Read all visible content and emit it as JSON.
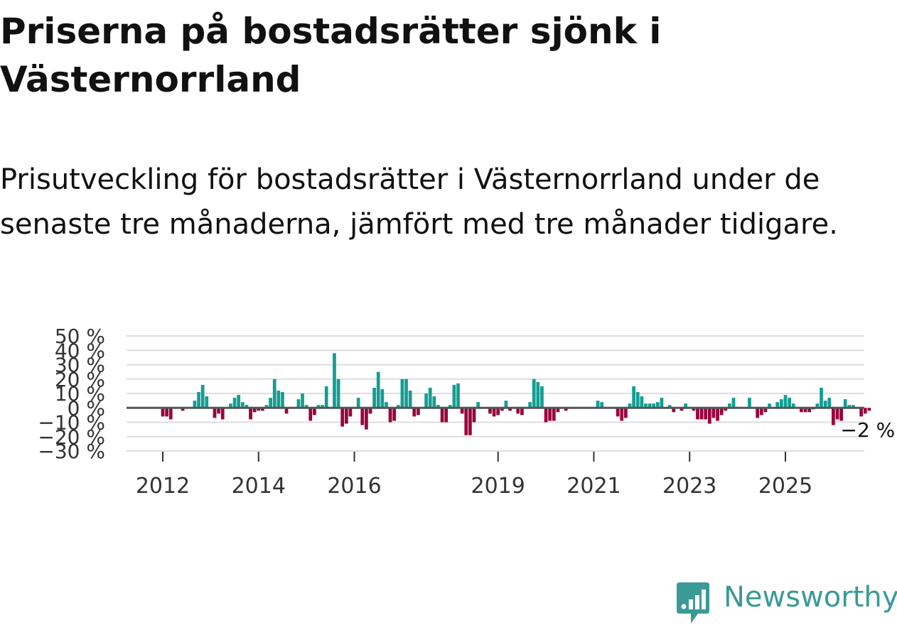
{
  "title": "Priserna på bostadsrätter sjönk i Västernorrland",
  "subtitle": "Prisutveckling för bostadsrätter i Västernorrland under de senaste tre månaderna, jämfört med tre månader tidigare.",
  "brand": {
    "name": "Newsworthy",
    "color": "#3a9a96"
  },
  "colors": {
    "positive": "#139e93",
    "negative": "#99003d",
    "grid": "#dddddd",
    "zero_line": "#555555"
  },
  "chart_data": {
    "type": "bar",
    "title": "Priserna på bostadsrätter sjönk i Västernorrland",
    "xlabel": "",
    "ylabel": "",
    "unit": "%",
    "ylim": [
      -30,
      50
    ],
    "yticks": [
      {
        "value": 50,
        "label": "50 %"
      },
      {
        "value": 40,
        "label": "40 %"
      },
      {
        "value": 30,
        "label": "30 %"
      },
      {
        "value": 20,
        "label": "20 %"
      },
      {
        "value": 10,
        "label": "10 %"
      },
      {
        "value": 0,
        "label": "0 %"
      },
      {
        "value": -10,
        "label": "−10 %"
      },
      {
        "value": -20,
        "label": "−20 %"
      },
      {
        "value": -30,
        "label": "−30 %"
      }
    ],
    "xticks": [
      {
        "year": 2012,
        "label": "2012"
      },
      {
        "year": 2014,
        "label": "2014"
      },
      {
        "year": 2016,
        "label": "2016"
      },
      {
        "year": 2019,
        "label": "2019"
      },
      {
        "year": 2021,
        "label": "2021"
      },
      {
        "year": 2023,
        "label": "2023"
      },
      {
        "year": 2025,
        "label": "2025"
      }
    ],
    "start": "2011-01",
    "last_label": "−2 %",
    "values": [
      0,
      0,
      0,
      0,
      0,
      0,
      0,
      0,
      0,
      0,
      0,
      0,
      -6,
      -6,
      -8,
      0,
      0,
      -2,
      0,
      0,
      5,
      11,
      16,
      8,
      0,
      -7,
      -4,
      -8,
      0,
      3,
      7,
      9,
      4,
      2,
      -8,
      -3,
      -2,
      -2,
      2,
      7,
      20,
      12,
      11,
      -4,
      0,
      0,
      6,
      10,
      2,
      -9,
      -5,
      2,
      2,
      15,
      0,
      38,
      20,
      -13,
      -11,
      -6,
      0,
      7,
      -12,
      -15,
      -4,
      14,
      25,
      13,
      4,
      -10,
      -9,
      2,
      20,
      20,
      12,
      -6,
      -5,
      0,
      10,
      14,
      8,
      2,
      -10,
      -10,
      2,
      16,
      17,
      -4,
      -19,
      -19,
      -10,
      4,
      0,
      0,
      -4,
      -6,
      -5,
      -2,
      5,
      -2,
      0,
      -4,
      -5,
      0,
      4,
      20,
      18,
      15,
      -10,
      -9,
      -9,
      -3,
      0,
      -2,
      0,
      0,
      0,
      0,
      0,
      0,
      0,
      5,
      4,
      0,
      0,
      0,
      -6,
      -9,
      -7,
      3,
      15,
      11,
      8,
      3,
      3,
      3,
      4,
      7,
      0,
      2,
      -3,
      0,
      -2,
      3,
      0,
      -2,
      -8,
      -8,
      -8,
      -11,
      -7,
      -9,
      -5,
      -2,
      3,
      7,
      0,
      0,
      0,
      7,
      0,
      -7,
      -5,
      -3,
      3,
      0,
      4,
      6,
      9,
      7,
      3,
      0,
      -3,
      -3,
      -3,
      -1,
      3,
      14,
      5,
      7,
      -12,
      -8,
      -9,
      6,
      2,
      2,
      0,
      -6,
      -4,
      -2
    ]
  }
}
